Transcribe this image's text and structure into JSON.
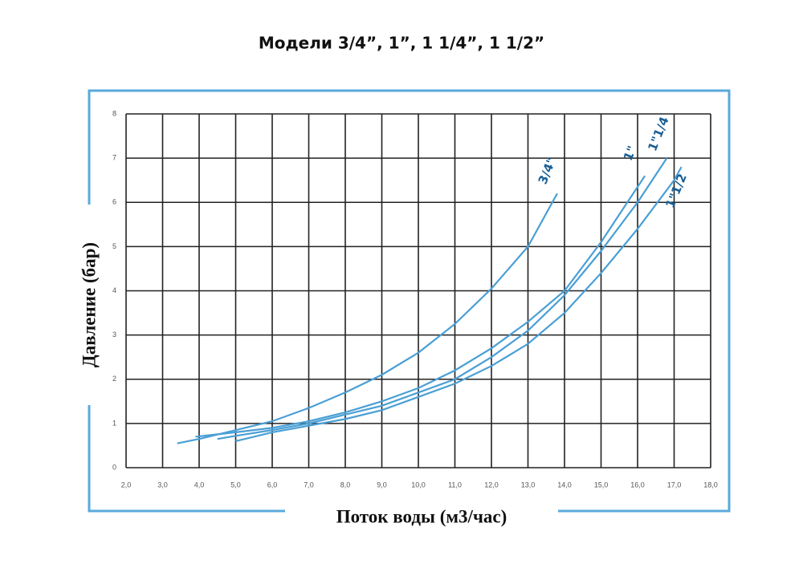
{
  "chart_data": {
    "type": "line",
    "title": "Модели 3/4”, 1”, 1 1/4”, 1 1/2”",
    "x_label": "Поток воды (м3/час)",
    "y_label": "Давление (бар)",
    "xlim": [
      2,
      18
    ],
    "ylim": [
      0,
      8
    ],
    "xticks": [
      {
        "value": 2,
        "label": "2,0"
      },
      {
        "value": 3,
        "label": "3,0"
      },
      {
        "value": 4,
        "label": "4,0"
      },
      {
        "value": 5,
        "label": "5,0"
      },
      {
        "value": 6,
        "label": "6,0"
      },
      {
        "value": 7,
        "label": "7,0"
      },
      {
        "value": 8,
        "label": "8,0"
      },
      {
        "value": 9,
        "label": "9,0"
      },
      {
        "value": 10,
        "label": "10,0"
      },
      {
        "value": 11,
        "label": "11,0"
      },
      {
        "value": 12,
        "label": "12,0"
      },
      {
        "value": 13,
        "label": "13,0"
      },
      {
        "value": 14,
        "label": "14,0"
      },
      {
        "value": 15,
        "label": "15,0"
      },
      {
        "value": 16,
        "label": "16,0"
      },
      {
        "value": 17,
        "label": "17,0"
      },
      {
        "value": 18,
        "label": "18,0"
      }
    ],
    "yticks": [
      0,
      1,
      2,
      3,
      4,
      5,
      6,
      7,
      8
    ],
    "grid": true,
    "series": [
      {
        "name": "3/4\"",
        "color": "#4a9fd5",
        "x": [
          3.4,
          4,
          5,
          6,
          7,
          8,
          9,
          10,
          11,
          12,
          13,
          13.8
        ],
        "values": [
          0.55,
          0.65,
          0.85,
          1.05,
          1.35,
          1.7,
          2.1,
          2.6,
          3.25,
          4.05,
          5.0,
          6.2
        ]
      },
      {
        "name": "1\"",
        "color": "#4a9fd5",
        "x": [
          3.9,
          5,
          6,
          7,
          8,
          9,
          10,
          11,
          12,
          13,
          14,
          15,
          16.2
        ],
        "values": [
          0.7,
          0.8,
          0.9,
          1.05,
          1.25,
          1.5,
          1.8,
          2.2,
          2.7,
          3.3,
          4.0,
          5.1,
          6.6
        ]
      },
      {
        "name": "1\"1/4",
        "color": "#4a9fd5",
        "x": [
          4.5,
          5,
          6,
          7,
          8,
          9,
          10,
          11,
          12,
          13,
          14,
          15,
          16,
          16.8
        ],
        "values": [
          0.65,
          0.72,
          0.85,
          1.0,
          1.2,
          1.4,
          1.7,
          2.0,
          2.5,
          3.1,
          3.9,
          4.9,
          6.0,
          7.0
        ]
      },
      {
        "name": "1\"1/2",
        "color": "#4a9fd5",
        "x": [
          5,
          6,
          7,
          8,
          9,
          10,
          11,
          12,
          13,
          14,
          15,
          16,
          17,
          17.2
        ],
        "values": [
          0.6,
          0.8,
          0.95,
          1.1,
          1.3,
          1.6,
          1.9,
          2.3,
          2.8,
          3.5,
          4.4,
          5.4,
          6.5,
          6.8
        ]
      }
    ]
  }
}
